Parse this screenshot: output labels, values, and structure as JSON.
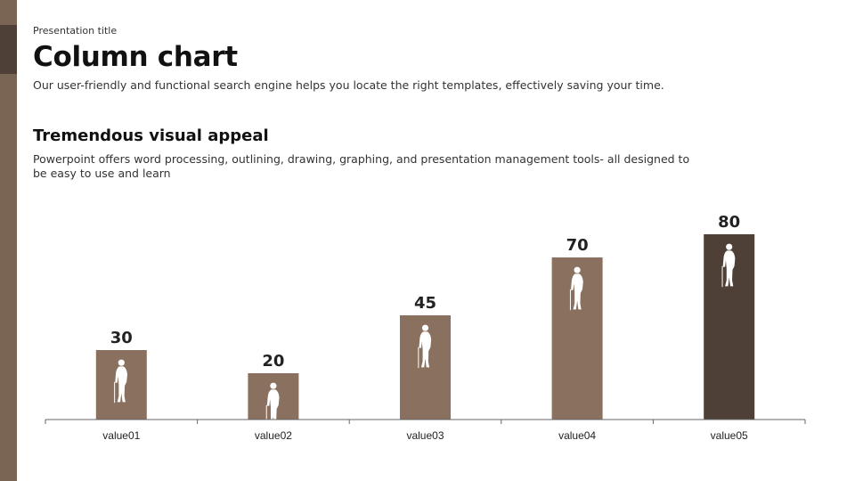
{
  "header": {
    "presentation_title": "Presentation title",
    "title": "Column chart",
    "subtitle": "Our user-friendly and functional search engine helps you locate the right templates, effectively saving your time."
  },
  "section": {
    "heading": "Tremendous visual appeal",
    "body": "Powerpoint offers word processing, outlining, drawing, graphing, and presentation management tools- all designed to be easy to use and learn"
  },
  "colors": {
    "sidebar": "#7a6555",
    "sidebar_accent": "#4e4037",
    "bar": "#8a705f",
    "bar_highlight": "#4e4037",
    "icon": "#ffffff"
  },
  "chart_data": {
    "type": "bar",
    "categories": [
      "value01",
      "value02",
      "value03",
      "value04",
      "value05"
    ],
    "values": [
      30,
      20,
      45,
      70,
      80
    ],
    "data_labels": [
      "30",
      "20",
      "45",
      "70",
      "80"
    ],
    "highlight_index": 4,
    "ylim": [
      0,
      90
    ],
    "grid": false,
    "bar_icon": "elderly-person-with-cane-icon"
  }
}
